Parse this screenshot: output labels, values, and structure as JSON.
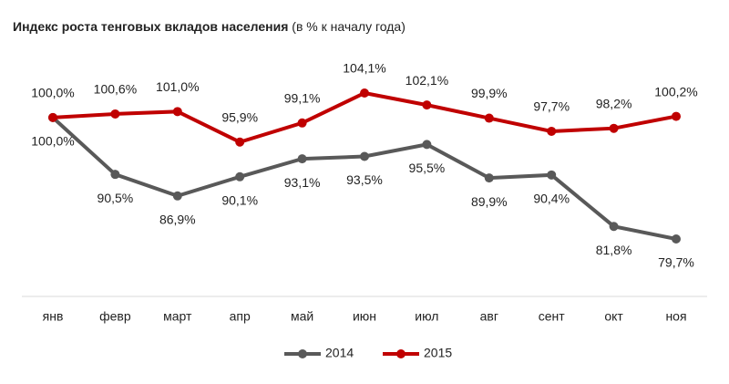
{
  "chart_data": {
    "type": "line",
    "title": "Индекс роста тенговых вкладов населения",
    "subtitle": "(в % к началу года)",
    "categories": [
      "янв",
      "февр",
      "март",
      "апр",
      "май",
      "июн",
      "июл",
      "авг",
      "сент",
      "окт",
      "ноя"
    ],
    "series": [
      {
        "name": "2014",
        "color": "#595959",
        "values": [
          100.0,
          90.5,
          86.9,
          90.1,
          93.1,
          93.5,
          95.5,
          89.9,
          90.4,
          81.8,
          79.7
        ],
        "value_labels": [
          "100,0%",
          "90,5%",
          "86,9%",
          "90,1%",
          "93,1%",
          "93,5%",
          "95,5%",
          "89,9%",
          "90,4%",
          "81,8%",
          "79,7%"
        ]
      },
      {
        "name": "2015",
        "color": "#c00000",
        "values": [
          100.0,
          100.6,
          101.0,
          95.9,
          99.1,
          104.1,
          102.1,
          99.9,
          97.7,
          98.2,
          100.2
        ],
        "value_labels": [
          "100,0%",
          "100,6%",
          "101,0%",
          "95,9%",
          "99,1%",
          "104,1%",
          "102,1%",
          "99,9%",
          "97,7%",
          "98,2%",
          "100,2%"
        ]
      }
    ],
    "legend": "bottom"
  }
}
